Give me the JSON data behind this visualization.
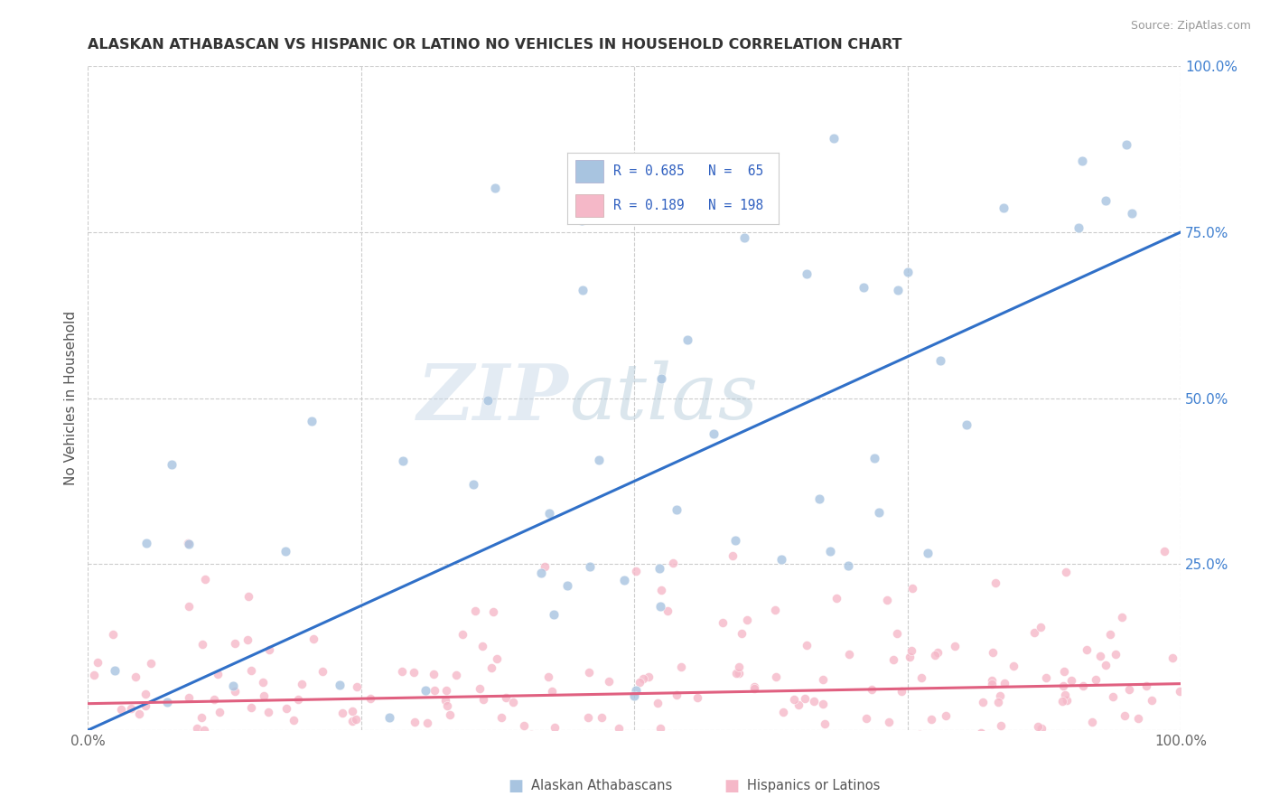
{
  "title": "ALASKAN ATHABASCAN VS HISPANIC OR LATINO NO VEHICLES IN HOUSEHOLD CORRELATION CHART",
  "source": "Source: ZipAtlas.com",
  "ylabel": "No Vehicles in Household",
  "watermark_text": "ZIPatlas",
  "legend_label1": "Alaskan Athabascans",
  "legend_label2": "Hispanics or Latinos",
  "legend_line1": "R = 0.685   N =  65",
  "legend_line2": "R = 0.189   N = 198",
  "color_blue": "#a8c4e0",
  "color_pink": "#f5b8c8",
  "line_blue": "#3070c8",
  "line_pink": "#e06080",
  "legend_text_color": "#3060c0",
  "tick_color_right": "#4080d0",
  "tick_color_bottom": "#666666",
  "blue_line_x0": 0.0,
  "blue_line_y0": 0.0,
  "blue_line_x1": 1.0,
  "blue_line_y1": 0.75,
  "pink_line_x0": 0.0,
  "pink_line_y0": 0.04,
  "pink_line_x1": 1.0,
  "pink_line_y1": 0.07,
  "xlim": [
    0,
    1
  ],
  "ylim": [
    0,
    1
  ],
  "grid_color": "#cccccc",
  "background": "#ffffff"
}
